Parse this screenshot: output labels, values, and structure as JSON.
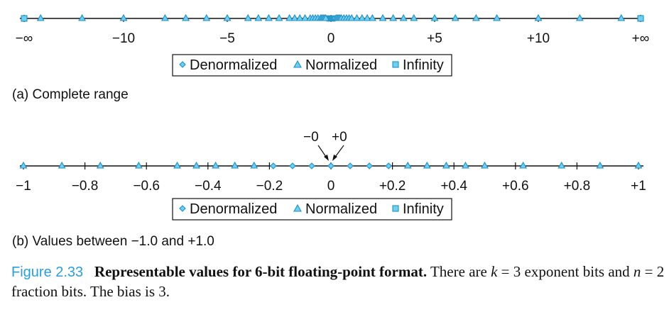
{
  "colors": {
    "mark_fill": "#6fcff0",
    "mark_stroke": "#1f8fc4",
    "caption_accent": "#2b9fd9"
  },
  "chart_data": [
    {
      "type": "scatter",
      "id": "complete-range",
      "title": "",
      "xlim": [
        -14,
        14
      ],
      "grid": false,
      "legend_placement": "bottom-center",
      "legend": [
        "Denormalized",
        "Normalized",
        "Infinity"
      ],
      "ticks": [
        {
          "value": "-inf",
          "label": "−∞"
        },
        {
          "value": -10,
          "label": "−10"
        },
        {
          "value": -5,
          "label": "−5"
        },
        {
          "value": 0,
          "label": "0"
        },
        {
          "value": 5,
          "label": "+5"
        },
        {
          "value": 10,
          "label": "+10"
        },
        {
          "value": "+inf",
          "label": "+∞"
        }
      ],
      "series": [
        {
          "name": "Denormalized",
          "marker": "diamond",
          "values": [
            -0.1875,
            -0.125,
            -0.0625,
            0,
            0,
            0.0625,
            0.125,
            0.1875
          ]
        },
        {
          "name": "Normalized",
          "marker": "triangle",
          "values": [
            -14,
            -12,
            -10,
            -8,
            -7,
            -6,
            -5,
            -4,
            -3.5,
            -3,
            -2.5,
            -2,
            -1.75,
            -1.5,
            -1.25,
            -1,
            -0.875,
            -0.75,
            -0.625,
            -0.5,
            -0.4375,
            -0.375,
            -0.3125,
            -0.25,
            0.25,
            0.3125,
            0.375,
            0.4375,
            0.5,
            0.625,
            0.75,
            0.875,
            1,
            1.25,
            1.5,
            1.75,
            2,
            2.5,
            3,
            3.5,
            4,
            5,
            6,
            7,
            8,
            10,
            12,
            14
          ]
        },
        {
          "name": "Infinity",
          "marker": "square",
          "values": [
            "-inf",
            "+inf"
          ]
        }
      ],
      "caption": "(a) Complete range"
    },
    {
      "type": "scatter",
      "id": "unit-range",
      "title": "",
      "xlim": [
        -1,
        1
      ],
      "grid": false,
      "legend_placement": "bottom-center",
      "legend": [
        "Denormalized",
        "Normalized",
        "Infinity"
      ],
      "ticks": [
        {
          "value": -1,
          "label": "−1"
        },
        {
          "value": -0.8,
          "label": "−0.8"
        },
        {
          "value": -0.6,
          "label": "−0.6"
        },
        {
          "value": -0.4,
          "label": "−0.4"
        },
        {
          "value": -0.2,
          "label": "−0.2"
        },
        {
          "value": 0,
          "label": "0"
        },
        {
          "value": 0.2,
          "label": "+0.2"
        },
        {
          "value": 0.4,
          "label": "+0.4"
        },
        {
          "value": 0.6,
          "label": "+0.6"
        },
        {
          "value": 0.8,
          "label": "+0.8"
        },
        {
          "value": 1,
          "label": "+1"
        }
      ],
      "annotations": [
        {
          "text": "−0",
          "value": 0
        },
        {
          "text": "+0",
          "value": 0
        }
      ],
      "series": [
        {
          "name": "Denormalized",
          "marker": "diamond",
          "values": [
            -0.1875,
            -0.125,
            -0.0625,
            0,
            0,
            0.0625,
            0.125,
            0.1875
          ]
        },
        {
          "name": "Normalized",
          "marker": "triangle",
          "values": [
            -1,
            -0.875,
            -0.75,
            -0.625,
            -0.5,
            -0.4375,
            -0.375,
            -0.3125,
            -0.25,
            0.25,
            0.3125,
            0.375,
            0.4375,
            0.5,
            0.625,
            0.75,
            0.875,
            1
          ]
        }
      ],
      "caption": "(b) Values between −1.0 and +1.0"
    }
  ],
  "figure_caption": {
    "label": "Figure 2.33",
    "title": "Representable values for 6-bit floating-point format.",
    "body_1": "There are ",
    "var_k": "k",
    "eq_1": " = 3 exponent bits and ",
    "var_n": "n",
    "eq_2": " = 2 fraction bits. The bias is 3."
  }
}
